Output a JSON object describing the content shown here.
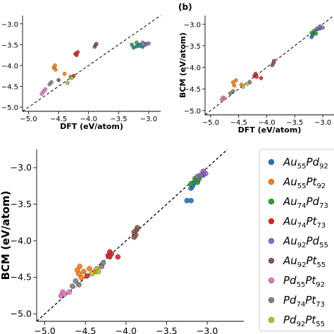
{
  "chart_data": [
    {
      "type": "scatter",
      "panel_label": "",
      "title": "",
      "xlabel": "DFT (eV/atom)",
      "ylabel": "",
      "xlim": [
        -5.1,
        -2.8
      ],
      "ylim": [
        -5.1,
        -2.8
      ],
      "xticks": [
        -5.0,
        -4.5,
        -4.0,
        -3.5,
        -3.0
      ],
      "xtick_labels": [
        "−5.0",
        "−4.5",
        "−4.0",
        "−3.5",
        "−3.0"
      ],
      "yticks": [
        -5.0,
        -4.5,
        -4.0,
        -3.5,
        -3.0
      ],
      "ytick_labels": [
        "−5.0",
        "−4.5",
        "−4.0",
        "−3.5",
        "−3.0"
      ],
      "reference_line": "y = x (dashed)",
      "series": [
        {
          "color": "#1f77b4",
          "points": [
            [
              -3.25,
              -3.57
            ],
            [
              -3.2,
              -3.54
            ],
            [
              -3.15,
              -3.5
            ],
            [
              -3.1,
              -3.55
            ],
            [
              -3.05,
              -3.48
            ]
          ]
        },
        {
          "color": "#ff7f0e",
          "points": [
            [
              -4.58,
              -4.05
            ],
            [
              -4.56,
              -4.0
            ],
            [
              -4.55,
              -4.1
            ],
            [
              -4.4,
              -4.2
            ]
          ]
        },
        {
          "color": "#2ca02c",
          "points": [
            [
              -3.28,
              -3.5
            ],
            [
              -3.2,
              -3.45
            ],
            [
              -3.15,
              -3.53
            ]
          ]
        },
        {
          "color": "#d62728",
          "points": [
            [
              -4.22,
              -3.72
            ],
            [
              -4.2,
              -3.75
            ],
            [
              -4.18,
              -3.68
            ],
            [
              -4.25,
              -4.25
            ]
          ]
        },
        {
          "color": "#9467bd",
          "points": [
            [
              -3.1,
              -3.45
            ],
            [
              -3.05,
              -3.5
            ],
            [
              -3.0,
              -3.47
            ]
          ]
        },
        {
          "color": "#8c564b",
          "points": [
            [
              -3.9,
              -3.55
            ],
            [
              -3.88,
              -3.5
            ],
            [
              -3.87,
              -3.48
            ],
            [
              -4.5,
              -4.35
            ]
          ]
        },
        {
          "color": "#e377c2",
          "points": [
            [
              -4.78,
              -4.68
            ],
            [
              -4.75,
              -4.62
            ],
            [
              -4.72,
              -4.57
            ]
          ]
        },
        {
          "color": "#7f7f7f",
          "points": [
            [
              -4.65,
              -4.45
            ],
            [
              -4.62,
              -4.4
            ],
            [
              -4.3,
              -4.27
            ]
          ]
        },
        {
          "color": "#bcbd22",
          "points": [
            [
              -4.35,
              -4.42
            ],
            [
              -4.28,
              -4.3
            ]
          ]
        }
      ]
    },
    {
      "type": "scatter",
      "panel_label": "(b)",
      "title": "",
      "xlabel": "DFT (eV/atom)",
      "ylabel": "BCM (eV/atom)",
      "xlim": [
        -5.1,
        -2.8
      ],
      "ylim": [
        -5.1,
        -2.8
      ],
      "xticks": [
        -5.0,
        -4.5,
        -4.0,
        -3.5,
        -3.0
      ],
      "xtick_labels": [
        "−5.0",
        "−4.5",
        "−4.0",
        "−3.5",
        "−3.0"
      ],
      "yticks": [
        -5.0,
        -4.5,
        -4.0,
        -3.5,
        -3.0
      ],
      "ytick_labels": [
        "−5.0",
        "−4.5",
        "−4.0",
        "−3.5",
        "−3.0"
      ],
      "reference_line": "y = x (dashed)",
      "series": [
        {
          "color": "#1f77b4",
          "points": [
            [
              -3.2,
              -3.3
            ],
            [
              -3.18,
              -3.25
            ],
            [
              -3.15,
              -3.2
            ],
            [
              -3.1,
              -3.12
            ],
            [
              -3.05,
              -3.1
            ]
          ]
        },
        {
          "color": "#ff7f0e",
          "points": [
            [
              -4.6,
              -4.35
            ],
            [
              -4.58,
              -4.42
            ],
            [
              -4.55,
              -4.3
            ],
            [
              -4.45,
              -4.4
            ]
          ]
        },
        {
          "color": "#2ca02c",
          "points": [
            [
              -3.2,
              -3.2
            ],
            [
              -3.15,
              -3.15
            ],
            [
              -3.12,
              -3.22
            ]
          ]
        },
        {
          "color": "#d62728",
          "points": [
            [
              -4.22,
              -4.2
            ],
            [
              -4.2,
              -4.15
            ],
            [
              -4.18,
              -4.22
            ],
            [
              -4.1,
              -4.25
            ]
          ]
        },
        {
          "color": "#9467bd",
          "points": [
            [
              -3.1,
              -3.1
            ],
            [
              -3.05,
              -3.05
            ],
            [
              -3.0,
              -3.08
            ]
          ]
        },
        {
          "color": "#8c564b",
          "points": [
            [
              -3.9,
              -3.95
            ],
            [
              -3.88,
              -3.9
            ],
            [
              -3.87,
              -3.85
            ]
          ]
        },
        {
          "color": "#e377c2",
          "points": [
            [
              -4.8,
              -4.75
            ],
            [
              -4.78,
              -4.7
            ],
            [
              -4.75,
              -4.72
            ]
          ]
        },
        {
          "color": "#7f7f7f",
          "points": [
            [
              -4.65,
              -4.6
            ],
            [
              -4.6,
              -4.55
            ],
            [
              -4.3,
              -4.35
            ]
          ]
        },
        {
          "color": "#bcbd22",
          "points": [
            [
              -4.42,
              -4.45
            ],
            [
              -4.35,
              -4.38
            ]
          ]
        }
      ]
    },
    {
      "type": "scatter",
      "panel_label": "",
      "title": "",
      "xlabel": "DFT (eV/atom)",
      "ylabel": "BCM (eV/atom)",
      "xlim": [
        -5.1,
        -2.55
      ],
      "ylim": [
        -5.1,
        -2.75
      ],
      "xticks": [
        -5.0,
        -4.5,
        -4.0,
        -3.5,
        -3.0
      ],
      "xtick_labels": [
        "−5.0",
        "−4.5",
        "−4.0",
        "−3.5",
        "−3.0"
      ],
      "yticks": [
        -5.0,
        -4.5,
        -4.0,
        -3.5,
        -3.0
      ],
      "ytick_labels": [
        "−5.0",
        "−4.5",
        "−4.0",
        "−3.5",
        "−3.0"
      ],
      "reference_line": "y = x (dashed)",
      "legend_position": "right",
      "series": [
        {
          "name": "Au55Pd92",
          "label_base": [
            "Au",
            "Pd"
          ],
          "label_sub": [
            "55",
            "92"
          ],
          "color": "#1f77b4",
          "points": [
            [
              -3.25,
              -3.45
            ],
            [
              -3.2,
              -3.45
            ],
            [
              -3.2,
              -3.28
            ],
            [
              -3.18,
              -3.25
            ],
            [
              -3.15,
              -3.2
            ],
            [
              -3.12,
              -3.18
            ],
            [
              -3.1,
              -3.12
            ],
            [
              -3.05,
              -3.1
            ]
          ]
        },
        {
          "name": "Au55Pt92",
          "label_base": [
            "Au",
            "Pt"
          ],
          "label_sub": [
            "55",
            "92"
          ],
          "color": "#ff7f0e",
          "points": [
            [
              -4.6,
              -4.4
            ],
            [
              -4.58,
              -4.45
            ],
            [
              -4.57,
              -4.35
            ],
            [
              -4.55,
              -4.5
            ],
            [
              -4.52,
              -4.42
            ],
            [
              -4.45,
              -4.38
            ],
            [
              -4.38,
              -4.42
            ]
          ]
        },
        {
          "name": "Au74Pd73",
          "label_base": [
            "Au",
            "Pd"
          ],
          "label_sub": [
            "74",
            "73"
          ],
          "color": "#2ca02c",
          "points": [
            [
              -3.2,
              -3.22
            ],
            [
              -3.15,
              -3.15
            ],
            [
              -3.12,
              -3.2
            ],
            [
              -3.1,
              -3.15
            ]
          ]
        },
        {
          "name": "Au74Pt73",
          "label_base": [
            "Au",
            "Pt"
          ],
          "label_sub": [
            "74",
            "73"
          ],
          "color": "#d62728",
          "points": [
            [
              -4.22,
              -4.2
            ],
            [
              -4.2,
              -4.15
            ],
            [
              -4.2,
              -4.22
            ],
            [
              -4.18,
              -4.18
            ],
            [
              -4.1,
              -4.22
            ],
            [
              -4.48,
              -4.48
            ]
          ]
        },
        {
          "name": "Au92Pd55",
          "label_base": [
            "Au",
            "Pd"
          ],
          "label_sub": [
            "92",
            "55"
          ],
          "color": "#9467bd",
          "points": [
            [
              -3.12,
              -3.12
            ],
            [
              -3.08,
              -3.1
            ],
            [
              -3.05,
              -3.05
            ],
            [
              -3.02,
              -3.08
            ]
          ]
        },
        {
          "name": "Au92Pt55",
          "label_base": [
            "Au",
            "Pt"
          ],
          "label_sub": [
            "92",
            "55"
          ],
          "color": "#8c564b",
          "points": [
            [
              -3.9,
              -3.95
            ],
            [
              -3.9,
              -3.88
            ],
            [
              -3.88,
              -3.92
            ],
            [
              -3.87,
              -3.85
            ],
            [
              -3.86,
              -3.82
            ]
          ]
        },
        {
          "name": "Pd55Pt92",
          "label_base": [
            "Pd",
            "Pt"
          ],
          "label_sub": [
            "55",
            "92"
          ],
          "color": "#e377c2",
          "points": [
            [
              -4.8,
              -4.75
            ],
            [
              -4.78,
              -4.7
            ],
            [
              -4.76,
              -4.73
            ],
            [
              -4.7,
              -4.7
            ]
          ]
        },
        {
          "name": "Pd74Pt73",
          "label_base": [
            "Pd",
            "Pt"
          ],
          "label_sub": [
            "74",
            "73"
          ],
          "color": "#7f7f7f",
          "points": [
            [
              -4.66,
              -4.62
            ],
            [
              -4.62,
              -4.55
            ],
            [
              -4.58,
              -4.6
            ],
            [
              -4.3,
              -4.35
            ],
            [
              -4.28,
              -4.3
            ]
          ]
        },
        {
          "name": "Pd92Pt55",
          "label_base": [
            "Pd",
            "Pt"
          ],
          "label_sub": [
            "92",
            "55"
          ],
          "color": "#bcbd22",
          "points": [
            [
              -4.42,
              -4.45
            ],
            [
              -4.36,
              -4.38
            ],
            [
              -4.34,
              -4.42
            ]
          ]
        }
      ]
    }
  ]
}
